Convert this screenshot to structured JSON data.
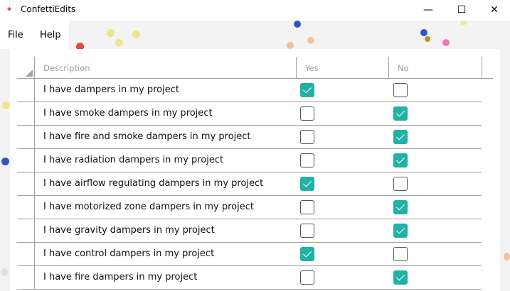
{
  "window": {
    "title": "ConfettiEdits",
    "minimize": "—",
    "maximize": "☐",
    "close": "✕"
  },
  "menu": [
    {
      "label": "File"
    },
    {
      "label": "Help"
    }
  ],
  "colors": {
    "accent": "#21b1a5"
  },
  "table": {
    "columns": [
      "Description",
      "Yes",
      "No"
    ],
    "rows": [
      {
        "description": "I have dampers in my project",
        "yes": true,
        "no": false
      },
      {
        "description": "I have smoke dampers in my project",
        "yes": false,
        "no": true
      },
      {
        "description": "I have fire and smoke dampers in my project",
        "yes": false,
        "no": true
      },
      {
        "description": "I have radiation dampers in my project",
        "yes": false,
        "no": true
      },
      {
        "description": "I have airflow regulating dampers in my project",
        "yes": true,
        "no": false
      },
      {
        "description": "I have motorized zone dampers in my project",
        "yes": false,
        "no": true
      },
      {
        "description": "I have gravity dampers in my project",
        "yes": false,
        "no": true
      },
      {
        "description": "I have control dampers in my project",
        "yes": true,
        "no": false
      },
      {
        "description": "I have fire dampers in my project",
        "yes": false,
        "no": true
      }
    ]
  }
}
